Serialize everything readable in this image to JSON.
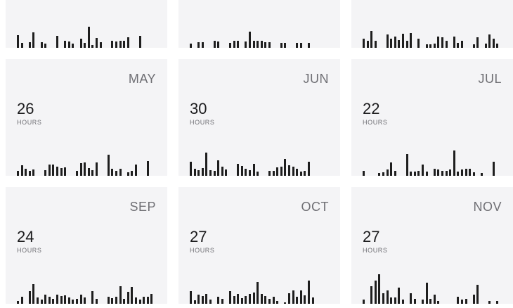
{
  "cards": [
    {
      "month": "",
      "hours": "",
      "hours_label": "",
      "bars": [
        0.6,
        0.25,
        0,
        0.28,
        0.72,
        0,
        0.28,
        0.2,
        0,
        0,
        0.58,
        0,
        0.35,
        0.3,
        0.2,
        0,
        0.45,
        0.22,
        1.0,
        0.15,
        0.48,
        0.28,
        0,
        0,
        0.32,
        0.3,
        0.32,
        0.35,
        0.5,
        0,
        0,
        0.58
      ]
    },
    {
      "month": "",
      "hours": "",
      "hours_label": "",
      "bars": [
        0.2,
        0,
        0.28,
        0.28,
        0,
        0,
        0.32,
        0.3,
        0,
        0,
        0.22,
        0.32,
        0.32,
        0,
        0.3,
        0.78,
        0.35,
        0.35,
        0.32,
        0.28,
        0.28,
        0,
        0,
        0.25,
        0.22,
        0,
        0,
        0.25,
        0.22,
        0,
        0.25
      ]
    },
    {
      "month": "",
      "hours": "",
      "hours_label": "",
      "bars": [
        0.45,
        0.32,
        0.8,
        0.35,
        0,
        0,
        0.65,
        0.42,
        0.55,
        0.38,
        0.66,
        0.35,
        0.7,
        0,
        0.42,
        0,
        0.18,
        0.18,
        0.2,
        0.55,
        0.5,
        0.32,
        0,
        0.55,
        0.22,
        0.35,
        0,
        0,
        0.18,
        0.5,
        0,
        0.2,
        0.62,
        0.45,
        0.2
      ]
    },
    {
      "month": "MAY",
      "hours": "26",
      "hours_label": "HOURS",
      "bars": [
        0.22,
        0.5,
        0.35,
        0.22,
        0.3,
        0,
        0,
        0.28,
        0.55,
        0.52,
        0.42,
        0.38,
        0.4,
        0,
        0,
        0.25,
        0.6,
        0.62,
        0.38,
        0.28,
        0.65,
        0,
        0,
        1.0,
        0.32,
        0.25,
        0.32,
        0,
        0.18,
        0.25,
        0.52,
        0,
        0,
        0.7
      ]
    },
    {
      "month": "JUN",
      "hours": "30",
      "hours_label": "HOURS",
      "bars": [
        0.68,
        0.32,
        0.28,
        0.38,
        1.1,
        0.28,
        0.22,
        0.72,
        0.45,
        0.3,
        0,
        0,
        0.58,
        0.48,
        0.32,
        0.28,
        0.58,
        0.2,
        0,
        0,
        0.25,
        0.22,
        0.4,
        0.45,
        0.8,
        0.5,
        0.45,
        0.35,
        0.2,
        0.25,
        0.68
      ]
    },
    {
      "month": "JUL",
      "hours": "22",
      "hours_label": "HOURS",
      "bars": [
        0.22,
        0,
        0,
        0,
        0.12,
        0.18,
        0.3,
        0.62,
        0.22,
        0,
        0,
        1.05,
        0.2,
        0.2,
        0.22,
        0.52,
        0.2,
        0,
        0.35,
        0.3,
        0.25,
        0.22,
        0.3,
        1.2,
        0.2,
        0.3,
        0.35,
        0.32,
        0.18,
        0,
        0.15,
        0,
        0,
        0.68
      ]
    },
    {
      "month": "SEP",
      "hours": "24",
      "hours_label": "HOURS",
      "bars": [
        0.15,
        0.32,
        0,
        0.6,
        0.95,
        0.3,
        0.2,
        0.42,
        0.35,
        0.25,
        0.42,
        0.38,
        0.4,
        0.3,
        0.2,
        0.22,
        0.42,
        0.3,
        0,
        0.6,
        0.22,
        0,
        0,
        0.35,
        0.28,
        0.32,
        0.85,
        0.22,
        0.58,
        0.8,
        0.3,
        0.2,
        0.35,
        0.35,
        0.48
      ]
    },
    {
      "month": "OCT",
      "hours": "27",
      "hours_label": "HOURS",
      "bars": [
        0.6,
        0.18,
        0.42,
        0.38,
        0.48,
        0.2,
        0,
        0.32,
        0.22,
        0,
        0.6,
        0.38,
        0.48,
        0.28,
        0.38,
        0.48,
        0.52,
        1.05,
        0.48,
        0.38,
        0.25,
        0.32,
        0.15,
        0,
        0.08,
        0.5,
        0.65,
        0.32,
        0.62,
        0.4,
        1.1,
        0.3
      ]
    },
    {
      "month": "NOV",
      "hours": "27",
      "hours_label": "HOURS",
      "bars": [
        0.2,
        0,
        0.85,
        1.1,
        1.4,
        0.5,
        0.65,
        0.3,
        0.3,
        0.78,
        0.2,
        0,
        0.5,
        0.22,
        0,
        0.2,
        1.0,
        0.22,
        0.45,
        0.15,
        0,
        0,
        0,
        0,
        0.35,
        0.2,
        0.25,
        0,
        0.45,
        0.9,
        0,
        0,
        0.12,
        0,
        0.15
      ]
    }
  ]
}
